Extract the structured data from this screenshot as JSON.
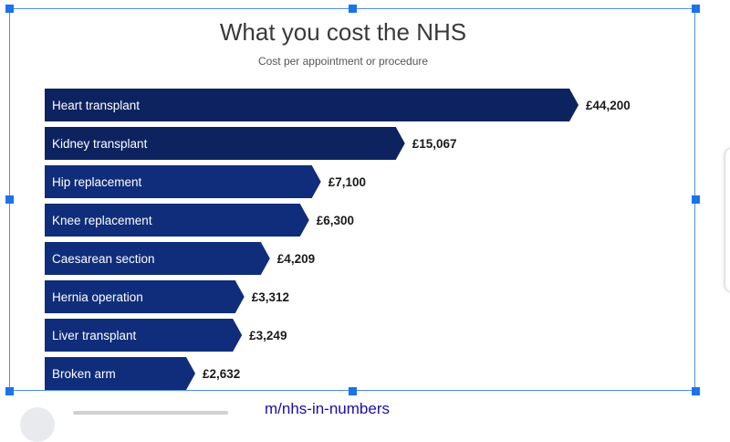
{
  "page": {
    "top_caption": "",
    "link_text": "m/nhs-in-numbers"
  },
  "chart": {
    "title": "What you cost the NHS",
    "subtitle": "Cost per appointment or procedure"
  },
  "colors": {
    "bar_dark": "#0d2360",
    "bar_mid": "#0f2d7a",
    "selection_handle": "#1a73e8",
    "link": "#1a0dab"
  },
  "chart_data": {
    "type": "bar",
    "orientation": "horizontal",
    "title": "What you cost the NHS",
    "subtitle": "Cost per appointment or procedure",
    "categories": [
      "Heart transplant",
      "Kidney transplant",
      "Hip replacement",
      "Knee replacement",
      "Caesarean section",
      "Hernia operation",
      "Liver transplant",
      "Broken arm"
    ],
    "values": [
      44200,
      15067,
      7100,
      6300,
      4209,
      3312,
      3249,
      2632
    ],
    "value_labels": [
      "£44,200",
      "£15,067",
      "£7,100",
      "£6,300",
      "£4,209",
      "£3,312",
      "£3,249",
      "£2,632"
    ],
    "xlabel": "",
    "ylabel": "",
    "grid": false,
    "legend": "none"
  }
}
